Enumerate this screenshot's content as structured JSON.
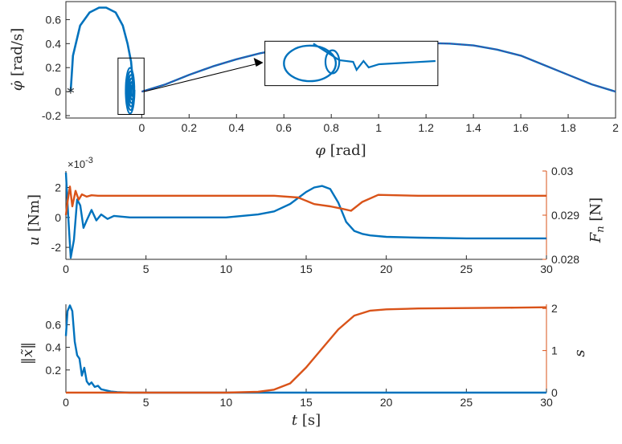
{
  "figure": {
    "background": "#ffffff",
    "axis_color": "#262626"
  },
  "chart_data": [
    {
      "type": "line",
      "panel": "phase",
      "xlabel": {
        "sym": "φ",
        "unit": " [rad]"
      },
      "ylabel": {
        "sym": "φ̇",
        "unit": " [rad/s]"
      },
      "xlim": [
        -0.32,
        2.0
      ],
      "ylim": [
        -0.22,
        0.75
      ],
      "xticks": [
        0,
        0.2,
        0.4,
        0.6,
        0.8,
        1,
        1.2,
        1.4,
        1.6,
        1.8,
        2
      ],
      "xtick_labels": [
        "0",
        "0.2",
        "0.4",
        "0.6",
        "0.8",
        "1",
        "1.2",
        "1.4",
        "1.6",
        "1.8",
        "2"
      ],
      "yticks": [
        -0.2,
        0,
        0.2,
        0.4,
        0.6
      ],
      "ytick_labels": [
        "-0.2",
        "0",
        "0.2",
        "0.4",
        "0.6"
      ],
      "start_marker": {
        "x": -0.3,
        "y": 0.0,
        "color": "#ff0000",
        "symbol": "*"
      },
      "series": [
        {
          "color": "#0072bd",
          "x": [
            -0.3,
            -0.29,
            -0.26,
            -0.22,
            -0.18,
            -0.15,
            -0.11,
            -0.08,
            -0.06,
            -0.045,
            -0.038,
            -0.035
          ],
          "y": [
            0.0,
            0.3,
            0.55,
            0.66,
            0.7,
            0.7,
            0.66,
            0.55,
            0.4,
            0.25,
            0.1,
            -0.02
          ]
        },
        {
          "color": "#0072bd",
          "x": [
            0.0,
            0.1,
            0.2,
            0.3,
            0.4,
            0.5,
            0.6,
            0.7,
            0.8,
            0.9,
            1.0,
            1.1,
            1.2,
            1.3,
            1.4,
            1.5,
            1.6,
            1.7,
            1.8,
            1.9,
            2.0
          ],
          "y": [
            0.0,
            0.06,
            0.14,
            0.21,
            0.27,
            0.32,
            0.355,
            0.375,
            0.39,
            0.395,
            0.4,
            0.403,
            0.405,
            0.4,
            0.385,
            0.35,
            0.3,
            0.22,
            0.14,
            0.06,
            0.0
          ]
        },
        {
          "color": "#7e2f8e",
          "dash": "dotted",
          "x": [
            0.0,
            0.1,
            0.2,
            0.3,
            0.4,
            0.5,
            0.6,
            0.7,
            0.8,
            0.9,
            1.0,
            1.1,
            1.2,
            1.3,
            1.4,
            1.5,
            1.6,
            1.7,
            1.8,
            1.9,
            2.0
          ],
          "y": [
            0.0,
            0.06,
            0.14,
            0.21,
            0.27,
            0.32,
            0.355,
            0.375,
            0.39,
            0.395,
            0.4,
            0.403,
            0.405,
            0.4,
            0.385,
            0.35,
            0.3,
            0.22,
            0.14,
            0.06,
            0.0
          ]
        }
      ],
      "spiral": {
        "color": "#0072bd",
        "x_range": [
          -0.07,
          -0.03
        ],
        "y_range": [
          -0.19,
          0.22
        ],
        "loops": 6
      },
      "zoom_box": {
        "x_range": [
          -0.1,
          0.01
        ],
        "y_range": [
          -0.19,
          0.28
        ]
      },
      "inset": {
        "x_range": [
          0.52,
          1.25
        ],
        "y_range": [
          0.05,
          0.42
        ]
      }
    },
    {
      "type": "line",
      "panel": "control",
      "xlim": [
        0,
        30
      ],
      "xticks": [
        0,
        5,
        10,
        15,
        20,
        25,
        30
      ],
      "xtick_labels": [
        "0",
        "5",
        "10",
        "15",
        "20",
        "25",
        "30"
      ],
      "left": {
        "label": {
          "sym": "u",
          "unit": " [Nm]"
        },
        "color": "#262626",
        "ylim": [
          -0.0028,
          0.0031
        ],
        "yticks": [
          -0.002,
          0,
          0.002
        ],
        "ytick_labels": [
          "-2",
          "0",
          "2"
        ],
        "exponent": "×10",
        "exponent_power": "-3"
      },
      "right": {
        "label": {
          "sym": "F",
          "sub": "n",
          "unit": " [N]"
        },
        "color": "#d95319",
        "ylim": [
          0.028,
          0.03
        ],
        "yticks": [
          0.028,
          0.029,
          0.03
        ],
        "ytick_labels": [
          "0.028",
          "0.029",
          "0.03"
        ]
      },
      "series": [
        {
          "axis": "left",
          "color": "#0072bd",
          "x": [
            0,
            0.15,
            0.3,
            0.5,
            0.7,
            0.9,
            1.1,
            1.3,
            1.6,
            1.9,
            2.2,
            2.6,
            3.0,
            4,
            6,
            8,
            10,
            11,
            12,
            13,
            14,
            15,
            15.5,
            16,
            16.5,
            17,
            17.5,
            18,
            18.5,
            19,
            20,
            22,
            25,
            28,
            30
          ],
          "y": [
            0.003,
            0.0,
            -0.0027,
            -0.0015,
            0.0012,
            0.0008,
            -0.0007,
            -0.0002,
            0.0005,
            -0.0002,
            0.0002,
            -0.0001,
            0.0001,
            0.0,
            0.0,
            0.0,
            0.0,
            0.0001,
            0.0002,
            0.0004,
            0.0009,
            0.0017,
            0.002,
            0.0021,
            0.0019,
            0.001,
            -0.0003,
            -0.0009,
            -0.0011,
            -0.0012,
            -0.0013,
            -0.00135,
            -0.0014,
            -0.0014,
            -0.0014
          ]
        },
        {
          "axis": "right",
          "color": "#d95319",
          "x": [
            0,
            0.1,
            0.25,
            0.4,
            0.6,
            0.8,
            1.0,
            1.3,
            1.6,
            2,
            5,
            10,
            13,
            14.5,
            15.5,
            16.5,
            17.2,
            17.8,
            18.5,
            19.5,
            22,
            26,
            30
          ],
          "y": [
            0.029,
            0.0293,
            0.02965,
            0.0292,
            0.02955,
            0.02935,
            0.02947,
            0.02942,
            0.02945,
            0.02944,
            0.02944,
            0.02944,
            0.02944,
            0.0294,
            0.02925,
            0.0292,
            0.02915,
            0.0291,
            0.0293,
            0.02946,
            0.02944,
            0.02944,
            0.02944
          ]
        }
      ]
    },
    {
      "type": "line",
      "panel": "state",
      "xlabel": {
        "sym": "t",
        "unit": " [s]"
      },
      "xlim": [
        0,
        30
      ],
      "xticks": [
        0,
        5,
        10,
        15,
        20,
        25,
        30
      ],
      "xtick_labels": [
        "0",
        "5",
        "10",
        "15",
        "20",
        "25",
        "30"
      ],
      "left": {
        "label": {
          "sym": "‖x̃‖"
        },
        "color": "#262626",
        "ylim": [
          0,
          0.78
        ],
        "yticks": [
          0.2,
          0.4,
          0.6
        ],
        "ytick_labels": [
          "0.2",
          "0.4",
          "0.6"
        ]
      },
      "right": {
        "label": {
          "sym": "s"
        },
        "color": "#d95319",
        "ylim": [
          0,
          2.1
        ],
        "yticks": [
          0,
          1,
          2
        ],
        "ytick_labels": [
          "0",
          "1",
          "2"
        ]
      },
      "series": [
        {
          "axis": "left",
          "color": "#0072bd",
          "x": [
            0,
            0.1,
            0.25,
            0.4,
            0.55,
            0.7,
            0.85,
            1.0,
            1.15,
            1.3,
            1.45,
            1.6,
            1.8,
            2.0,
            2.2,
            2.5,
            2.8,
            3.2,
            4,
            30
          ],
          "y": [
            0.5,
            0.72,
            0.77,
            0.72,
            0.45,
            0.33,
            0.3,
            0.15,
            0.22,
            0.1,
            0.07,
            0.09,
            0.05,
            0.06,
            0.03,
            0.02,
            0.01,
            0.005,
            0.0,
            0.0
          ]
        },
        {
          "axis": "right",
          "color": "#d95319",
          "x": [
            0,
            5,
            10,
            12,
            13,
            14,
            15,
            16,
            17,
            18,
            19,
            20,
            22,
            25,
            28,
            30
          ],
          "y": [
            0.0,
            0.0,
            0.0,
            0.02,
            0.07,
            0.22,
            0.6,
            1.05,
            1.5,
            1.83,
            1.95,
            1.98,
            2.0,
            2.01,
            2.02,
            2.03
          ]
        }
      ]
    }
  ]
}
